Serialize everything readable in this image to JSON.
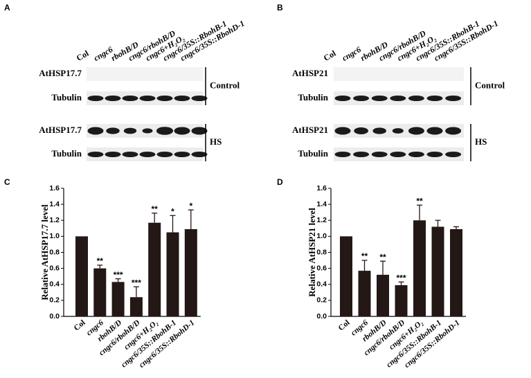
{
  "panels": [
    {
      "letter": "A",
      "lanes": [
        "Col",
        "cngc6",
        "rbohB/D",
        "cngc6/rbohB/D",
        "cngc6+H₂O₂",
        "cngc6/35S::RbohB-1",
        "cngc6/35S::RbohD-1"
      ],
      "rows": [
        "AtHSP17.7",
        "Tubulin",
        "AtHSP17.7",
        "Tubulin"
      ],
      "groups": [
        "Control",
        "HS"
      ]
    },
    {
      "letter": "B",
      "lanes": [
        "Col",
        "cngc6",
        "rbohB/D",
        "cngc6/rbohB/D",
        "cngc6+H₂O₂",
        "cngc6/35S::RbohB-1",
        "cngc6/35S::RbohD-1"
      ],
      "rows": [
        "AtHSP21",
        "Tubulin",
        "AtHSP21",
        "Tubulin"
      ],
      "groups": [
        "Control",
        "HS"
      ]
    }
  ],
  "chart_data": [
    {
      "type": "bar",
      "panel_label": "C",
      "ylabel": "Relative AtHSP17.7 level",
      "categories": [
        "Col",
        "cngc6",
        "rbohB/D",
        "cngc6/rbohB/D",
        "cngc6+H₂O₂",
        "cngc6/35S::RbohB-1",
        "cngc6/35S::RbohD-1"
      ],
      "values": [
        1.0,
        0.6,
        0.43,
        0.24,
        1.17,
        1.05,
        1.09
      ],
      "errors": [
        0,
        0.04,
        0.04,
        0.13,
        0.12,
        0.21,
        0.24
      ],
      "annotations": [
        null,
        "**",
        "***",
        "***",
        "**",
        "*",
        "*"
      ],
      "color": "#231815",
      "ylim": [
        0,
        1.6
      ],
      "yticks": [
        {
          "value": 0,
          "label": "0.0"
        },
        0.2,
        0.4,
        0.6,
        0.8,
        {
          "value": 1,
          "label": "1.0"
        },
        1.2,
        1.4,
        1.6
      ]
    },
    {
      "type": "bar",
      "panel_label": "D",
      "ylabel": "Relative AtHSP21 level",
      "categories": [
        "Col",
        "cngc6",
        "rbohB/D",
        "cngc6/rbohB/D",
        "cngc6+H₂O₂",
        "cngc6/35S::RbohB-1",
        "cngc6/35S::RbohD-1"
      ],
      "values": [
        1.0,
        0.57,
        0.52,
        0.39,
        1.2,
        1.12,
        1.09
      ],
      "errors": [
        0,
        0.13,
        0.17,
        0.04,
        0.19,
        0.08,
        0.03
      ],
      "annotations": [
        null,
        "**",
        "**",
        "***",
        "**",
        null,
        null
      ],
      "color": "#231815",
      "ylim": [
        0,
        1.6
      ],
      "yticks": [
        {
          "value": 0,
          "label": "0.0"
        },
        0.2,
        0.4,
        0.6,
        0.8,
        {
          "value": 1,
          "label": "1.0"
        },
        1.2,
        1.4,
        1.6
      ]
    }
  ]
}
